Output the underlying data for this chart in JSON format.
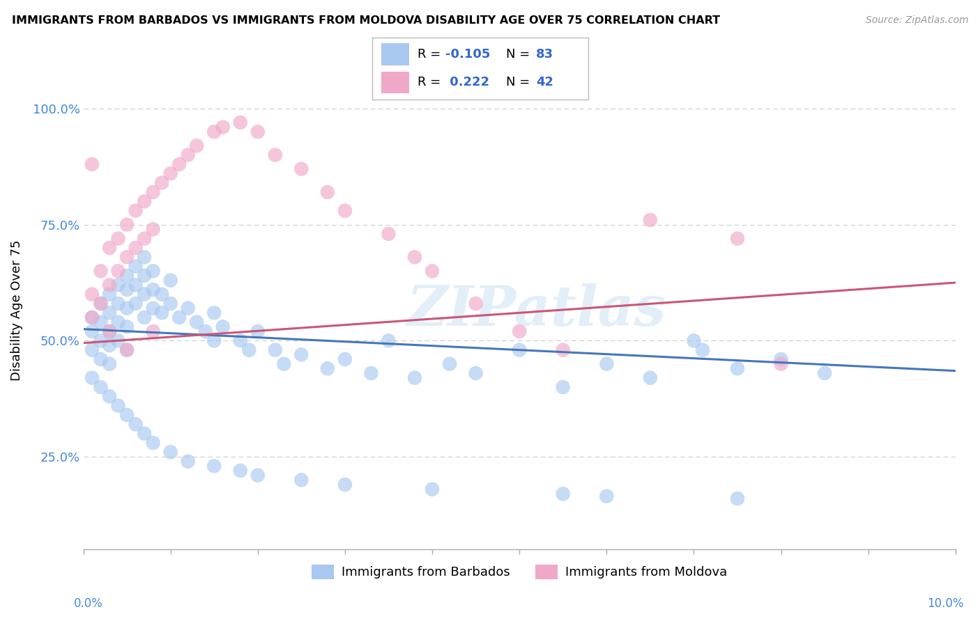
{
  "title": "IMMIGRANTS FROM BARBADOS VS IMMIGRANTS FROM MOLDOVA DISABILITY AGE OVER 75 CORRELATION CHART",
  "source": "Source: ZipAtlas.com",
  "ylabel": "Disability Age Over 75",
  "ytick_values": [
    0.25,
    0.5,
    0.75,
    1.0
  ],
  "xmin": 0.0,
  "xmax": 0.1,
  "ymin": 0.05,
  "ymax": 1.08,
  "color_barbados": "#a8c8f0",
  "color_moldova": "#f0a8c8",
  "color_line_barbados": "#4477bb",
  "color_line_moldova": "#cc5577",
  "line_b_x0": 0.0,
  "line_b_y0": 0.525,
  "line_b_x1": 0.1,
  "line_b_y1": 0.435,
  "line_m_x0": 0.0,
  "line_m_y0": 0.495,
  "line_m_x1": 0.1,
  "line_m_y1": 0.625,
  "barbados_x": [
    0.001,
    0.001,
    0.001,
    0.002,
    0.002,
    0.002,
    0.002,
    0.003,
    0.003,
    0.003,
    0.003,
    0.003,
    0.004,
    0.004,
    0.004,
    0.004,
    0.005,
    0.005,
    0.005,
    0.005,
    0.005,
    0.006,
    0.006,
    0.006,
    0.007,
    0.007,
    0.007,
    0.007,
    0.008,
    0.008,
    0.008,
    0.009,
    0.009,
    0.01,
    0.01,
    0.011,
    0.012,
    0.013,
    0.014,
    0.015,
    0.015,
    0.016,
    0.018,
    0.019,
    0.02,
    0.022,
    0.023,
    0.025,
    0.028,
    0.03,
    0.033,
    0.035,
    0.038,
    0.042,
    0.045,
    0.05,
    0.055,
    0.06,
    0.065,
    0.07,
    0.071,
    0.075,
    0.08,
    0.085,
    0.001,
    0.002,
    0.003,
    0.004,
    0.005,
    0.006,
    0.007,
    0.008,
    0.01,
    0.012,
    0.015,
    0.018,
    0.02,
    0.025,
    0.03,
    0.04,
    0.055,
    0.06,
    0.075
  ],
  "barbados_y": [
    0.55,
    0.52,
    0.48,
    0.58,
    0.54,
    0.5,
    0.46,
    0.6,
    0.56,
    0.52,
    0.49,
    0.45,
    0.62,
    0.58,
    0.54,
    0.5,
    0.64,
    0.61,
    0.57,
    0.53,
    0.48,
    0.66,
    0.62,
    0.58,
    0.68,
    0.64,
    0.6,
    0.55,
    0.65,
    0.61,
    0.57,
    0.6,
    0.56,
    0.63,
    0.58,
    0.55,
    0.57,
    0.54,
    0.52,
    0.56,
    0.5,
    0.53,
    0.5,
    0.48,
    0.52,
    0.48,
    0.45,
    0.47,
    0.44,
    0.46,
    0.43,
    0.5,
    0.42,
    0.45,
    0.43,
    0.48,
    0.4,
    0.45,
    0.42,
    0.5,
    0.48,
    0.44,
    0.46,
    0.43,
    0.42,
    0.4,
    0.38,
    0.36,
    0.34,
    0.32,
    0.3,
    0.28,
    0.26,
    0.24,
    0.23,
    0.22,
    0.21,
    0.2,
    0.19,
    0.18,
    0.17,
    0.165,
    0.16
  ],
  "moldova_x": [
    0.001,
    0.001,
    0.002,
    0.002,
    0.003,
    0.003,
    0.004,
    0.004,
    0.005,
    0.005,
    0.006,
    0.006,
    0.007,
    0.007,
    0.008,
    0.008,
    0.009,
    0.01,
    0.011,
    0.012,
    0.013,
    0.015,
    0.016,
    0.018,
    0.02,
    0.022,
    0.025,
    0.028,
    0.03,
    0.035,
    0.038,
    0.04,
    0.045,
    0.05,
    0.055,
    0.065,
    0.075,
    0.08,
    0.001,
    0.003,
    0.005,
    0.008
  ],
  "moldova_y": [
    0.6,
    0.55,
    0.65,
    0.58,
    0.7,
    0.62,
    0.72,
    0.65,
    0.75,
    0.68,
    0.78,
    0.7,
    0.8,
    0.72,
    0.82,
    0.74,
    0.84,
    0.86,
    0.88,
    0.9,
    0.92,
    0.95,
    0.96,
    0.97,
    0.95,
    0.9,
    0.87,
    0.82,
    0.78,
    0.73,
    0.68,
    0.65,
    0.58,
    0.52,
    0.48,
    0.76,
    0.72,
    0.45,
    0.88,
    0.52,
    0.48,
    0.52
  ]
}
